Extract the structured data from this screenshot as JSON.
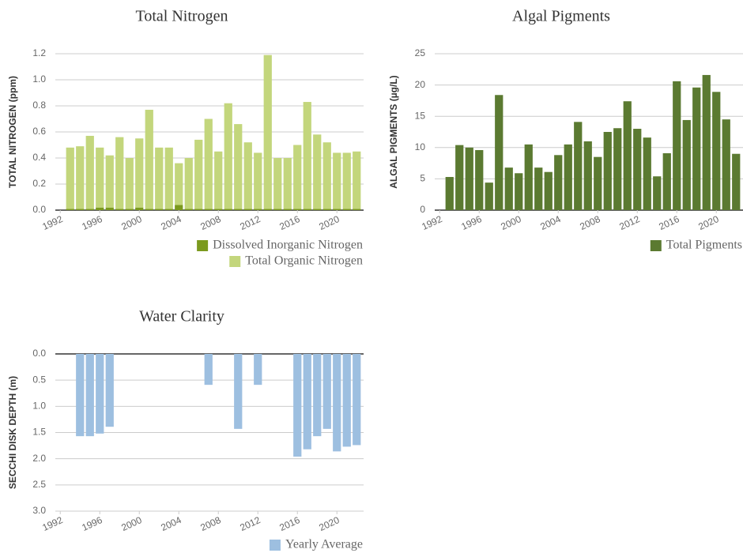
{
  "chart_data": [
    {
      "type": "bar",
      "stacked": true,
      "title": "Total Nitrogen",
      "ylabel": "TOTAL NITROGEN (ppm)",
      "x": [
        1993,
        1994,
        1995,
        1996,
        1997,
        1998,
        1999,
        2000,
        2001,
        2002,
        2003,
        2004,
        2005,
        2006,
        2007,
        2008,
        2009,
        2010,
        2011,
        2012,
        2013,
        2014,
        2015,
        2016,
        2017,
        2018,
        2019,
        2020,
        2021,
        2022
      ],
      "series": [
        {
          "name": "Dissolved Inorganic Nitrogen",
          "color": "#7b9a1e",
          "values": [
            0.01,
            0.01,
            0.01,
            0.02,
            0.02,
            0.01,
            0.01,
            0.02,
            0.01,
            0.01,
            0.01,
            0.04,
            0.01,
            0.01,
            0.01,
            0.01,
            0.01,
            0.01,
            0.01,
            0.01,
            0.01,
            0.01,
            0.01,
            0.01,
            0.01,
            0.01,
            0.01,
            0.01,
            0.01,
            0.01
          ]
        },
        {
          "name": "Total Organic Nitrogen",
          "color": "#c3d67c",
          "values": [
            0.47,
            0.48,
            0.56,
            0.46,
            0.4,
            0.55,
            0.39,
            0.53,
            0.76,
            0.47,
            0.47,
            0.32,
            0.39,
            0.53,
            0.69,
            0.44,
            0.81,
            0.65,
            0.51,
            0.43,
            1.18,
            0.39,
            0.39,
            0.49,
            0.82,
            0.57,
            0.51,
            0.43,
            0.43,
            0.44
          ]
        }
      ],
      "xlim": [
        1991.5,
        2022.7
      ],
      "xticks": [
        1992,
        1996,
        2000,
        2004,
        2008,
        2012,
        2016,
        2020
      ],
      "ylim": [
        0,
        1.2
      ],
      "yticks": [
        {
          "value": 0,
          "label": "0.0"
        },
        0.2,
        0.4,
        0.6,
        0.8,
        {
          "value": 1,
          "label": "1.0"
        },
        1.2
      ],
      "grid": true,
      "legend": "bottom-right"
    },
    {
      "type": "bar",
      "stacked": false,
      "title": "Algal Pigments",
      "ylabel": "ALGAL PIGMENTS (µg/L)",
      "x": [
        1993,
        1994,
        1995,
        1996,
        1997,
        1998,
        1999,
        2000,
        2001,
        2002,
        2003,
        2004,
        2005,
        2006,
        2007,
        2008,
        2009,
        2010,
        2011,
        2012,
        2013,
        2014,
        2015,
        2016,
        2017,
        2018,
        2019,
        2020,
        2021,
        2022
      ],
      "series": [
        {
          "name": "Total Pigments",
          "color": "#5b7a31",
          "values": [
            5.3,
            10.4,
            10.0,
            9.6,
            4.4,
            18.4,
            6.8,
            5.9,
            10.5,
            6.8,
            6.1,
            8.8,
            10.5,
            14.1,
            11.0,
            8.5,
            12.5,
            13.1,
            17.4,
            13.0,
            11.6,
            5.4,
            9.1,
            20.6,
            14.4,
            19.6,
            21.6,
            18.9,
            14.5,
            9.0
          ]
        }
      ],
      "xlim": [
        1991.5,
        2022.7
      ],
      "xticks": [
        1992,
        1996,
        2000,
        2004,
        2008,
        2012,
        2016,
        2020
      ],
      "ylim": [
        0,
        25
      ],
      "yticks": [
        0,
        5,
        10,
        15,
        20,
        25
      ],
      "grid": true,
      "legend": "bottom-right"
    },
    {
      "type": "bar",
      "stacked": false,
      "y_inverted": true,
      "title": "Water Clarity",
      "ylabel": "SECCHI DISK DEPTH (m)",
      "x": [
        1994,
        1995,
        1996,
        1997,
        2007,
        2010,
        2012,
        2016,
        2017,
        2018,
        2019,
        2020,
        2021,
        2022
      ],
      "series": [
        {
          "name": "Yearly Average",
          "color": "#9dbfe0",
          "values": [
            1.57,
            1.57,
            1.52,
            1.39,
            0.59,
            1.43,
            0.59,
            1.96,
            1.82,
            1.57,
            1.43,
            1.86,
            1.77,
            1.74
          ]
        }
      ],
      "xlim": [
        1991.5,
        2022.7
      ],
      "xticks": [
        1992,
        1996,
        2000,
        2004,
        2008,
        2012,
        2016,
        2020
      ],
      "ylim": [
        0,
        3
      ],
      "yticks": [
        {
          "value": 0,
          "label": "0.0"
        },
        0.5,
        {
          "value": 1,
          "label": "1.0"
        },
        1.5,
        {
          "value": 2,
          "label": "2.0"
        },
        2.5,
        {
          "value": 3,
          "label": "3.0"
        }
      ],
      "grid": true,
      "legend": "bottom-right"
    }
  ]
}
